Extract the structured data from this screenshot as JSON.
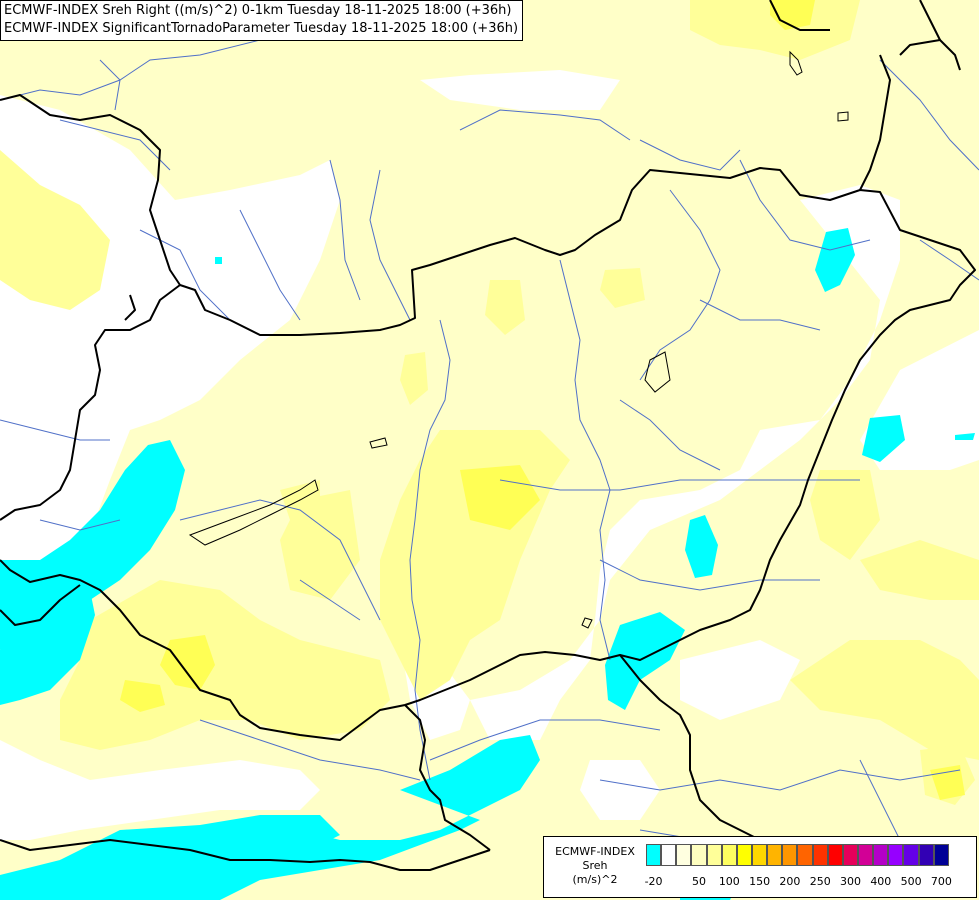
{
  "header": {
    "line1": "ECMWF-INDEX Sreh Right ((m/s)^2) 0-1km Tuesday 18-11-2025 18:00 (+36h)",
    "line2": "ECMWF-INDEX SignificantTornadoParameter Tuesday 18-11-2025 18:00 (+36h)"
  },
  "legend": {
    "model": "ECMWF-INDEX",
    "parameter": "Sreh",
    "unit": "(m/s)^2",
    "colors": [
      "#00ffff",
      "#ffffff",
      "#ffffe0",
      "#ffffc0",
      "#ffff99",
      "#ffff60",
      "#ffff00",
      "#ffd700",
      "#ffb400",
      "#ff9600",
      "#ff6400",
      "#ff3200",
      "#ff0000",
      "#e6005a",
      "#d20096",
      "#b400c8",
      "#9600ff",
      "#6400e6",
      "#3200b4",
      "#000096"
    ],
    "ticks": [
      "-20",
      "50",
      "100",
      "150",
      "200",
      "250",
      "300",
      "400",
      "500",
      "700"
    ]
  },
  "map_colors": {
    "background": "#ffffc8",
    "white_zone": "#ffffff",
    "yellow_light": "#ffff99",
    "yellow_mid": "#ffff66",
    "cyan": "#00ffff",
    "border": "#000000",
    "river": "#5070c8"
  }
}
